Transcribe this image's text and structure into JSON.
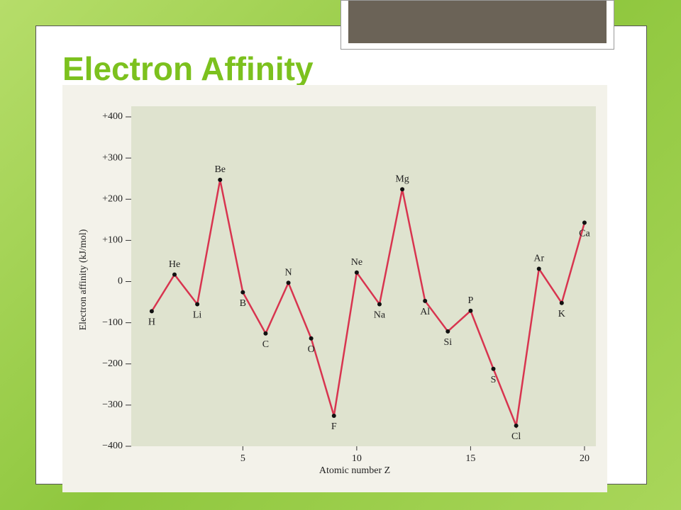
{
  "chart_data": {
    "type": "line",
    "title": "Electron Affinity",
    "y_label": "Electron affinity (kJ/mol)",
    "x_label": "Atomic number Z",
    "x": [
      1,
      2,
      3,
      4,
      5,
      6,
      7,
      8,
      9,
      10,
      11,
      12,
      13,
      14,
      15,
      16,
      17,
      18,
      19,
      20
    ],
    "point_labels": [
      "H",
      "He",
      "Li",
      "Be",
      "B",
      "C",
      "N",
      "O",
      "F",
      "Ne",
      "Na",
      "Mg",
      "Al",
      "Si",
      "P",
      "S",
      "Cl",
      "Ar",
      "K",
      "Ca"
    ],
    "series": [
      {
        "name": "Electron affinity",
        "color": "#d8344f",
        "values": [
          -72,
          17,
          -55,
          247,
          -26,
          -126,
          -3,
          -138,
          -326,
          22,
          -55,
          224,
          -47,
          -121,
          -71,
          -212,
          -350,
          31,
          -52,
          143
        ]
      }
    ],
    "xlim": [
      0.1,
      20.5
    ],
    "xticks": [
      5,
      10,
      15,
      20
    ],
    "ylim": [
      -400,
      400
    ],
    "yticks": [
      {
        "value": 400,
        "label": "+400"
      },
      {
        "value": 300,
        "label": "+300"
      },
      {
        "value": 200,
        "label": "+200"
      },
      {
        "value": 100,
        "label": "+100"
      },
      0,
      {
        "value": -100,
        "label": "−100"
      },
      {
        "value": -200,
        "label": "−200"
      },
      {
        "value": -300,
        "label": "−300"
      },
      {
        "value": -400,
        "label": "−400"
      }
    ]
  }
}
